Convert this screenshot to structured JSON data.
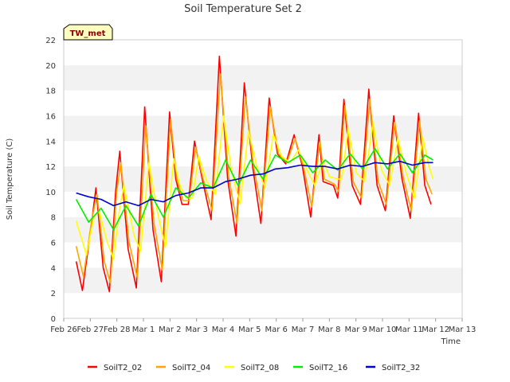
{
  "chart_data": {
    "type": "line",
    "title": "Soil Temperature Set 2",
    "xlabel": "Time",
    "ylabel": "Soil Temperature (C)",
    "badge": "TW_met",
    "ylim": [
      0,
      22
    ],
    "yticks": [
      0,
      2,
      4,
      6,
      8,
      10,
      12,
      14,
      16,
      18,
      20,
      22
    ],
    "xlim": [
      "2024-02-26",
      "2024-03-13"
    ],
    "xticks": [
      "Feb 26",
      "Feb 27",
      "Feb 28",
      "Mar 1",
      "Mar 2",
      "Mar 3",
      "Mar 4",
      "Mar 5",
      "Mar 6",
      "Mar 7",
      "Mar 8",
      "Mar 9",
      "Mar 10",
      "Mar 11",
      "Mar 12",
      "Mar 13"
    ],
    "grid": "horizontal bands",
    "legend_position": "bottom",
    "series": [
      {
        "name": "SoilT2_02",
        "color": "#ff0000",
        "points": [
          [
            "2024-02-26 12:00",
            4.5
          ],
          [
            "2024-02-26 18:00",
            2.2
          ],
          [
            "2024-02-27 02:00",
            7.0
          ],
          [
            "2024-02-27 07:00",
            10.3
          ],
          [
            "2024-02-27 14:00",
            4.0
          ],
          [
            "2024-02-27 20:00",
            2.1
          ],
          [
            "2024-02-28 02:00",
            10.0
          ],
          [
            "2024-02-28 06:00",
            13.2
          ],
          [
            "2024-02-28 14:00",
            5.5
          ],
          [
            "2024-02-28 22:00",
            2.4
          ],
          [
            "2024-02-29 06:00",
            16.7
          ],
          [
            "2024-02-29 14:00",
            7.0
          ],
          [
            "2024-02-29 22:00",
            2.9
          ],
          [
            "2024-03-01 06:00",
            16.3
          ],
          [
            "2024-03-01 12:00",
            11.0
          ],
          [
            "2024-03-01 18:00",
            9.0
          ],
          [
            "2024-03-02 00:00",
            9.0
          ],
          [
            "2024-03-02 06:00",
            14.0
          ],
          [
            "2024-03-02 14:00",
            10.8
          ],
          [
            "2024-03-02 22:00",
            7.8
          ],
          [
            "2024-03-03 06:00",
            20.7
          ],
          [
            "2024-03-03 14:00",
            11.0
          ],
          [
            "2024-03-03 22:00",
            6.5
          ],
          [
            "2024-03-04 06:00",
            18.6
          ],
          [
            "2024-03-04 14:00",
            12.0
          ],
          [
            "2024-03-04 22:00",
            7.5
          ],
          [
            "2024-03-05 06:00",
            17.4
          ],
          [
            "2024-03-05 14:00",
            13.0
          ],
          [
            "2024-03-05 22:00",
            12.2
          ],
          [
            "2024-03-06 06:00",
            14.5
          ],
          [
            "2024-03-06 14:00",
            12.0
          ],
          [
            "2024-03-06 22:00",
            8.0
          ],
          [
            "2024-03-07 06:00",
            14.5
          ],
          [
            "2024-03-07 10:00",
            10.8
          ],
          [
            "2024-03-07 20:00",
            10.5
          ],
          [
            "2024-03-08 00:00",
            9.5
          ],
          [
            "2024-03-08 06:00",
            17.3
          ],
          [
            "2024-03-08 14:00",
            10.5
          ],
          [
            "2024-03-08 22:00",
            9.0
          ],
          [
            "2024-03-09 06:00",
            18.1
          ],
          [
            "2024-03-09 14:00",
            10.5
          ],
          [
            "2024-03-09 22:00",
            8.5
          ],
          [
            "2024-03-10 06:00",
            16.0
          ],
          [
            "2024-03-10 14:00",
            11.0
          ],
          [
            "2024-03-10 22:00",
            7.9
          ],
          [
            "2024-03-11 06:00",
            16.2
          ],
          [
            "2024-03-11 12:00",
            10.5
          ],
          [
            "2024-03-11 18:00",
            9.0
          ]
        ]
      },
      {
        "name": "SoilT2_04",
        "color": "#ffa500",
        "points": [
          [
            "2024-02-26 12:00",
            5.7
          ],
          [
            "2024-02-26 19:00",
            3.3
          ],
          [
            "2024-02-27 03:00",
            7.8
          ],
          [
            "2024-02-27 08:00",
            9.8
          ],
          [
            "2024-02-27 15:00",
            4.5
          ],
          [
            "2024-02-27 21:00",
            2.8
          ],
          [
            "2024-02-28 03:00",
            10.0
          ],
          [
            "2024-02-28 07:00",
            12.3
          ],
          [
            "2024-02-28 15:00",
            6.0
          ],
          [
            "2024-02-28 23:00",
            3.2
          ],
          [
            "2024-02-29 07:00",
            15.2
          ],
          [
            "2024-02-29 15:00",
            7.5
          ],
          [
            "2024-02-29 23:00",
            3.8
          ],
          [
            "2024-03-01 07:00",
            15.7
          ],
          [
            "2024-03-01 13:00",
            11.0
          ],
          [
            "2024-03-01 19:00",
            9.3
          ],
          [
            "2024-03-02 01:00",
            9.3
          ],
          [
            "2024-03-02 07:00",
            13.5
          ],
          [
            "2024-03-02 15:00",
            10.8
          ],
          [
            "2024-03-02 23:00",
            8.5
          ],
          [
            "2024-03-03 07:00",
            19.3
          ],
          [
            "2024-03-03 15:00",
            11.2
          ],
          [
            "2024-03-03 23:00",
            7.5
          ],
          [
            "2024-03-04 07:00",
            17.5
          ],
          [
            "2024-03-04 15:00",
            12.0
          ],
          [
            "2024-03-04 23:00",
            8.5
          ],
          [
            "2024-03-05 07:00",
            16.7
          ],
          [
            "2024-03-05 15:00",
            13.0
          ],
          [
            "2024-03-05 23:00",
            12.3
          ],
          [
            "2024-03-06 07:00",
            14.2
          ],
          [
            "2024-03-06 15:00",
            12.0
          ],
          [
            "2024-03-06 23:00",
            8.8
          ],
          [
            "2024-03-07 07:00",
            14.0
          ],
          [
            "2024-03-07 11:00",
            11.0
          ],
          [
            "2024-03-07 21:00",
            10.6
          ],
          [
            "2024-03-08 01:00",
            10.0
          ],
          [
            "2024-03-08 07:00",
            16.8
          ],
          [
            "2024-03-08 15:00",
            10.8
          ],
          [
            "2024-03-08 23:00",
            9.5
          ],
          [
            "2024-03-09 07:00",
            17.3
          ],
          [
            "2024-03-09 15:00",
            10.8
          ],
          [
            "2024-03-09 23:00",
            9.0
          ],
          [
            "2024-03-10 07:00",
            15.5
          ],
          [
            "2024-03-10 15:00",
            11.2
          ],
          [
            "2024-03-10 23:00",
            8.5
          ],
          [
            "2024-03-11 07:00",
            15.6
          ],
          [
            "2024-03-11 13:00",
            11.0
          ],
          [
            "2024-03-11 19:00",
            9.8
          ]
        ]
      },
      {
        "name": "SoilT2_08",
        "color": "#ffff00",
        "points": [
          [
            "2024-02-26 12:00",
            7.7
          ],
          [
            "2024-02-26 22:00",
            5.0
          ],
          [
            "2024-02-27 05:00",
            8.0
          ],
          [
            "2024-02-27 10:00",
            8.5
          ],
          [
            "2024-02-27 18:00",
            6.0
          ],
          [
            "2024-02-28 00:00",
            4.7
          ],
          [
            "2024-02-28 06:00",
            8.8
          ],
          [
            "2024-02-28 10:00",
            10.5
          ],
          [
            "2024-02-28 20:00",
            6.5
          ],
          [
            "2024-02-29 02:00",
            5.3
          ],
          [
            "2024-02-29 10:00",
            12.3
          ],
          [
            "2024-02-29 18:00",
            8.5
          ],
          [
            "2024-03-01 02:00",
            5.6
          ],
          [
            "2024-03-01 10:00",
            12.6
          ],
          [
            "2024-03-01 16:00",
            10.5
          ],
          [
            "2024-03-01 22:00",
            9.5
          ],
          [
            "2024-03-02 04:00",
            9.5
          ],
          [
            "2024-03-02 10:00",
            12.8
          ],
          [
            "2024-03-02 18:00",
            10.8
          ],
          [
            "2024-03-03 02:00",
            9.8
          ],
          [
            "2024-03-03 10:00",
            16.0
          ],
          [
            "2024-03-03 18:00",
            11.5
          ],
          [
            "2024-03-04 02:00",
            9.0
          ],
          [
            "2024-03-04 10:00",
            14.8
          ],
          [
            "2024-03-04 18:00",
            12.0
          ],
          [
            "2024-03-05 02:00",
            10.3
          ],
          [
            "2024-03-05 10:00",
            14.5
          ],
          [
            "2024-03-05 18:00",
            12.8
          ],
          [
            "2024-03-06 02:00",
            12.3
          ],
          [
            "2024-03-06 10:00",
            13.3
          ],
          [
            "2024-03-06 18:00",
            11.8
          ],
          [
            "2024-03-07 02:00",
            10.5
          ],
          [
            "2024-03-07 10:00",
            12.5
          ],
          [
            "2024-03-07 16:00",
            11.2
          ],
          [
            "2024-03-08 00:00",
            11.0
          ],
          [
            "2024-03-08 04:00",
            11.0
          ],
          [
            "2024-03-08 10:00",
            15.0
          ],
          [
            "2024-03-08 18:00",
            11.5
          ],
          [
            "2024-03-09 02:00",
            10.8
          ],
          [
            "2024-03-09 10:00",
            15.5
          ],
          [
            "2024-03-09 18:00",
            11.8
          ],
          [
            "2024-03-10 02:00",
            10.5
          ],
          [
            "2024-03-10 10:00",
            14.2
          ],
          [
            "2024-03-10 18:00",
            11.5
          ],
          [
            "2024-03-11 02:00",
            9.5
          ],
          [
            "2024-03-11 10:00",
            14.3
          ],
          [
            "2024-03-11 16:00",
            12.0
          ],
          [
            "2024-03-11 20:00",
            11.0
          ]
        ]
      },
      {
        "name": "SoilT2_16",
        "color": "#00ee00",
        "points": [
          [
            "2024-02-26 12:00",
            9.4
          ],
          [
            "2024-02-27 00:00",
            7.6
          ],
          [
            "2024-02-27 12:00",
            8.7
          ],
          [
            "2024-02-28 00:00",
            7.0
          ],
          [
            "2024-02-28 12:00",
            8.9
          ],
          [
            "2024-02-29 00:00",
            7.3
          ],
          [
            "2024-02-29 12:00",
            9.8
          ],
          [
            "2024-03-01 00:00",
            8.0
          ],
          [
            "2024-03-01 12:00",
            10.3
          ],
          [
            "2024-03-02 00:00",
            9.5
          ],
          [
            "2024-03-02 12:00",
            10.7
          ],
          [
            "2024-03-03 00:00",
            10.3
          ],
          [
            "2024-03-03 12:00",
            12.5
          ],
          [
            "2024-03-04 00:00",
            10.5
          ],
          [
            "2024-03-04 12:00",
            12.5
          ],
          [
            "2024-03-05 00:00",
            11.0
          ],
          [
            "2024-03-05 12:00",
            12.9
          ],
          [
            "2024-03-06 00:00",
            12.3
          ],
          [
            "2024-03-06 12:00",
            12.9
          ],
          [
            "2024-03-07 00:00",
            11.5
          ],
          [
            "2024-03-07 12:00",
            12.5
          ],
          [
            "2024-03-08 00:00",
            11.7
          ],
          [
            "2024-03-08 12:00",
            13.0
          ],
          [
            "2024-03-09 00:00",
            11.8
          ],
          [
            "2024-03-09 12:00",
            13.4
          ],
          [
            "2024-03-10 00:00",
            11.8
          ],
          [
            "2024-03-10 12:00",
            13.0
          ],
          [
            "2024-03-11 00:00",
            11.5
          ],
          [
            "2024-03-11 12:00",
            12.9
          ],
          [
            "2024-03-11 20:00",
            12.5
          ]
        ]
      },
      {
        "name": "SoilT2_32",
        "color": "#0000cc",
        "points": [
          [
            "2024-02-26 12:00",
            9.9
          ],
          [
            "2024-02-27 00:00",
            9.6
          ],
          [
            "2024-02-27 12:00",
            9.4
          ],
          [
            "2024-02-28 00:00",
            8.9
          ],
          [
            "2024-02-28 12:00",
            9.2
          ],
          [
            "2024-02-29 00:00",
            8.9
          ],
          [
            "2024-02-29 12:00",
            9.4
          ],
          [
            "2024-03-01 00:00",
            9.2
          ],
          [
            "2024-03-01 12:00",
            9.7
          ],
          [
            "2024-03-02 00:00",
            9.9
          ],
          [
            "2024-03-02 12:00",
            10.3
          ],
          [
            "2024-03-03 00:00",
            10.3
          ],
          [
            "2024-03-03 12:00",
            10.8
          ],
          [
            "2024-03-04 00:00",
            11.0
          ],
          [
            "2024-03-04 12:00",
            11.3
          ],
          [
            "2024-03-05 00:00",
            11.4
          ],
          [
            "2024-03-05 12:00",
            11.8
          ],
          [
            "2024-03-06 00:00",
            11.9
          ],
          [
            "2024-03-06 12:00",
            12.1
          ],
          [
            "2024-03-07 00:00",
            12.0
          ],
          [
            "2024-03-07 12:00",
            12.0
          ],
          [
            "2024-03-08 00:00",
            11.8
          ],
          [
            "2024-03-08 12:00",
            12.1
          ],
          [
            "2024-03-09 00:00",
            12.0
          ],
          [
            "2024-03-09 12:00",
            12.3
          ],
          [
            "2024-03-10 00:00",
            12.2
          ],
          [
            "2024-03-10 12:00",
            12.4
          ],
          [
            "2024-03-11 00:00",
            12.1
          ],
          [
            "2024-03-11 12:00",
            12.3
          ],
          [
            "2024-03-11 20:00",
            12.3
          ]
        ]
      }
    ]
  }
}
